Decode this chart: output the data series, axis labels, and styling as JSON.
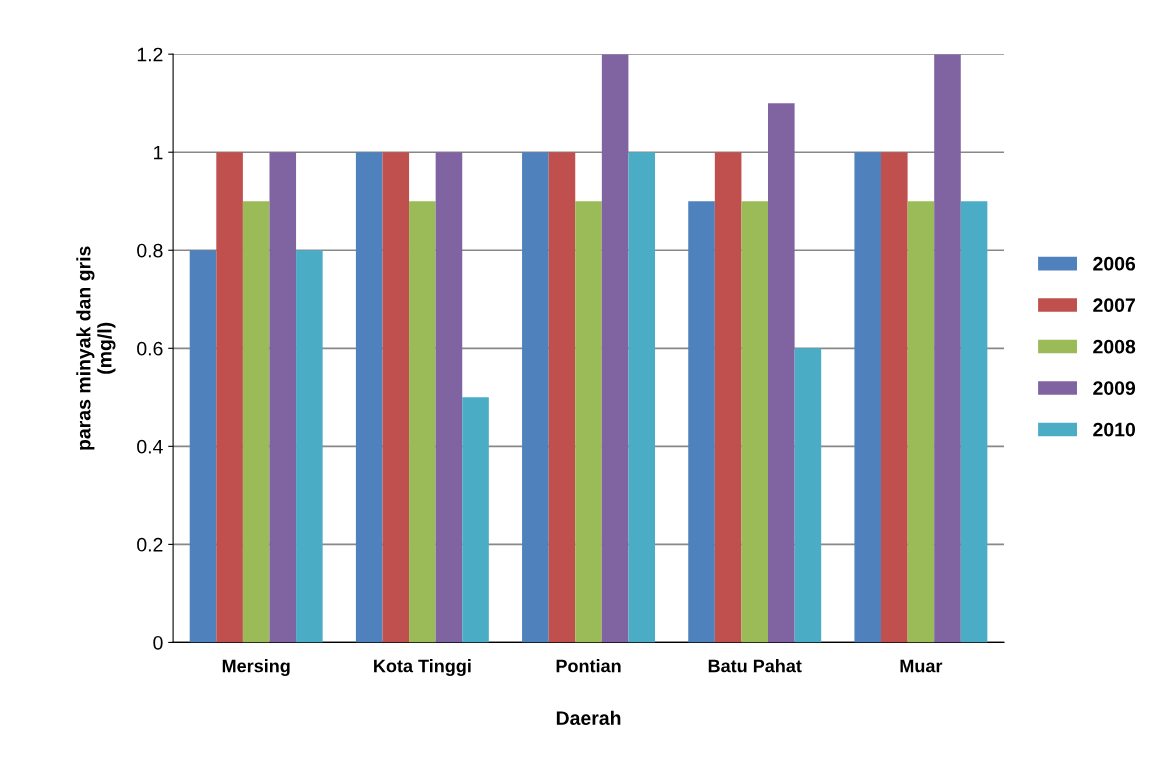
{
  "chart_data": {
    "type": "bar",
    "xlabel": "Daerah",
    "ylabel": "paras minyak dan gris\n(mg/l)",
    "categories": [
      "Mersing",
      "Kota Tinggi",
      "Pontian",
      "Batu Pahat",
      "Muar"
    ],
    "series": [
      {
        "name": "2006",
        "color": "#4f81bd",
        "values": [
          0.8,
          1.0,
          1.0,
          0.9,
          1.0
        ]
      },
      {
        "name": "2007",
        "color": "#c0504d",
        "values": [
          1.0,
          1.0,
          1.0,
          1.0,
          1.0
        ]
      },
      {
        "name": "2008",
        "color": "#9bbb59",
        "values": [
          0.9,
          0.9,
          0.9,
          0.9,
          0.9
        ]
      },
      {
        "name": "2009",
        "color": "#8064a2",
        "values": [
          1.0,
          1.0,
          1.2,
          1.1,
          1.2
        ]
      },
      {
        "name": "2010",
        "color": "#4bacc6",
        "values": [
          0.8,
          0.5,
          1.0,
          0.6,
          0.9
        ]
      }
    ],
    "ylim": [
      0,
      1.2
    ],
    "yticks": [
      0,
      {
        "value": 0.2,
        "label": "0.2"
      },
      {
        "value": 0.4,
        "label": "0.4"
      },
      {
        "value": 0.6,
        "label": "0.6"
      },
      {
        "value": 0.8,
        "label": "0.8"
      },
      1,
      {
        "value": 1.2,
        "label": "1.2"
      }
    ],
    "grid": "y",
    "legend": "right"
  }
}
